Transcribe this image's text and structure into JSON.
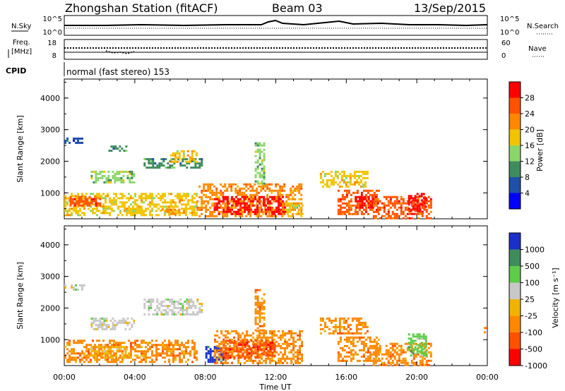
{
  "header": {
    "station": "Zhongshan Station (fitACF)",
    "beam": "Beam 03",
    "date": "13/Sep/2015"
  },
  "strip_nsky": {
    "left_label": "N.Sky",
    "left_ticks": [
      "10^5",
      "10^0"
    ],
    "right_ticks": [
      "10^5",
      "10^0"
    ],
    "right_label": "N.Search"
  },
  "strip_freq": {
    "label_line1": "Freq.",
    "label_line2": "[MHz]",
    "left_ticks": [
      "18",
      "8"
    ],
    "right_ticks": [
      "60",
      "0"
    ],
    "right_label": "Nave"
  },
  "cpid": {
    "label": "CPID",
    "text": "normal (fast stereo) 153"
  },
  "x_axis": {
    "title": "Time UT",
    "ticks": [
      "00:00",
      "04:00",
      "08:00",
      "12:00",
      "16:00",
      "20:00",
      "00:00"
    ]
  },
  "chart_data": [
    {
      "type": "heatmap",
      "title": "",
      "xlabel": "Time UT",
      "ylabel": "Slant Range [km]",
      "x_range_hours": [
        0,
        24
      ],
      "ylim": [
        180,
        4600
      ],
      "yticks": [
        1000,
        2000,
        3000,
        4000
      ],
      "colorbar_label": "Power [dB]",
      "colorbar_ticks": [
        "4",
        "8",
        "12",
        "16",
        "20",
        "24",
        "28"
      ],
      "colors": [
        "#0000ff",
        "#1f4fa8",
        "#3e8c5e",
        "#8bd66b",
        "#f2c400",
        "#ff8800",
        "#ff5200",
        "#ff0000"
      ],
      "regions": [
        {
          "t": [
            0.0,
            1.2
          ],
          "r": [
            2550,
            2750
          ],
          "v": 1
        },
        {
          "t": [
            2.5,
            3.5
          ],
          "r": [
            2300,
            2500
          ],
          "v": 2
        },
        {
          "t": [
            1.5,
            4.0
          ],
          "r": [
            1350,
            1700
          ],
          "v": 3
        },
        {
          "t": [
            4.5,
            7.8
          ],
          "r": [
            1800,
            2100
          ],
          "v": 2
        },
        {
          "t": [
            6.0,
            7.5
          ],
          "r": [
            1950,
            2350
          ],
          "v": 4
        },
        {
          "t": [
            0.0,
            7.5
          ],
          "r": [
            300,
            1000
          ],
          "v": 4
        },
        {
          "t": [
            0.3,
            2.0
          ],
          "r": [
            600,
            900
          ],
          "v": 6
        },
        {
          "t": [
            5.5,
            6.5
          ],
          "r": [
            300,
            500
          ],
          "v": 5
        },
        {
          "t": [
            7.5,
            13.5
          ],
          "r": [
            250,
            1300
          ],
          "v": 5
        },
        {
          "t": [
            8.5,
            12.5
          ],
          "r": [
            350,
            900
          ],
          "v": 7
        },
        {
          "t": [
            10.8,
            11.3
          ],
          "r": [
            1300,
            2600
          ],
          "v": 3
        },
        {
          "t": [
            12.5,
            13.5
          ],
          "r": [
            300,
            700
          ],
          "v": 4
        },
        {
          "t": [
            14.5,
            17.2
          ],
          "r": [
            1200,
            1700
          ],
          "v": 4
        },
        {
          "t": [
            15.5,
            17.8
          ],
          "r": [
            300,
            1100
          ],
          "v": 6
        },
        {
          "t": [
            16.5,
            17.5
          ],
          "r": [
            500,
            900
          ],
          "v": 7
        },
        {
          "t": [
            17.5,
            20.8
          ],
          "r": [
            200,
            900
          ],
          "v": 6
        },
        {
          "t": [
            19.5,
            20.5
          ],
          "r": [
            400,
            1000
          ],
          "v": 7
        }
      ]
    },
    {
      "type": "heatmap",
      "title": "",
      "xlabel": "Time UT",
      "ylabel": "Slant Range [km]",
      "x_range_hours": [
        0,
        24
      ],
      "ylim": [
        180,
        4600
      ],
      "yticks": [
        1000,
        2000,
        3000,
        4000
      ],
      "colorbar_label": "Velocity [m s⁻¹]",
      "colorbar_ticks": [
        "1000",
        "500",
        "100",
        "25",
        "-25",
        "-100",
        "-500",
        "-1000"
      ],
      "colors": [
        "#1a30c8",
        "#3e8c5e",
        "#5ccc4a",
        "#c8c8c8",
        "#f0b400",
        "#ff8800",
        "#ff5000",
        "#ff0000"
      ],
      "regions": [
        {
          "t": [
            0.0,
            1.2
          ],
          "r": [
            2550,
            2750
          ],
          "v": 3
        },
        {
          "t": [
            1.5,
            4.0
          ],
          "r": [
            1350,
            1700
          ],
          "v": 3
        },
        {
          "t": [
            4.5,
            7.8
          ],
          "r": [
            1800,
            2300
          ],
          "v": 3
        },
        {
          "t": [
            0.0,
            7.5
          ],
          "r": [
            300,
            1000
          ],
          "v": 5
        },
        {
          "t": [
            1.5,
            3.5
          ],
          "r": [
            400,
            800
          ],
          "v": 4
        },
        {
          "t": [
            8.0,
            9.0
          ],
          "r": [
            300,
            800
          ],
          "v": 0
        },
        {
          "t": [
            8.5,
            13.5
          ],
          "r": [
            250,
            1300
          ],
          "v": 5
        },
        {
          "t": [
            9.0,
            12.0
          ],
          "r": [
            400,
            1000
          ],
          "v": 6
        },
        {
          "t": [
            10.8,
            11.3
          ],
          "r": [
            1300,
            2600
          ],
          "v": 5
        },
        {
          "t": [
            14.5,
            17.2
          ],
          "r": [
            1200,
            1700
          ],
          "v": 5
        },
        {
          "t": [
            15.5,
            17.8
          ],
          "r": [
            300,
            1100
          ],
          "v": 5
        },
        {
          "t": [
            17.5,
            20.8
          ],
          "r": [
            200,
            900
          ],
          "v": 5
        },
        {
          "t": [
            19.5,
            20.5
          ],
          "r": [
            500,
            1200
          ],
          "v": 2
        },
        {
          "t": [
            23.8,
            24.0
          ],
          "r": [
            1200,
            1400
          ],
          "v": 5
        }
      ]
    }
  ]
}
